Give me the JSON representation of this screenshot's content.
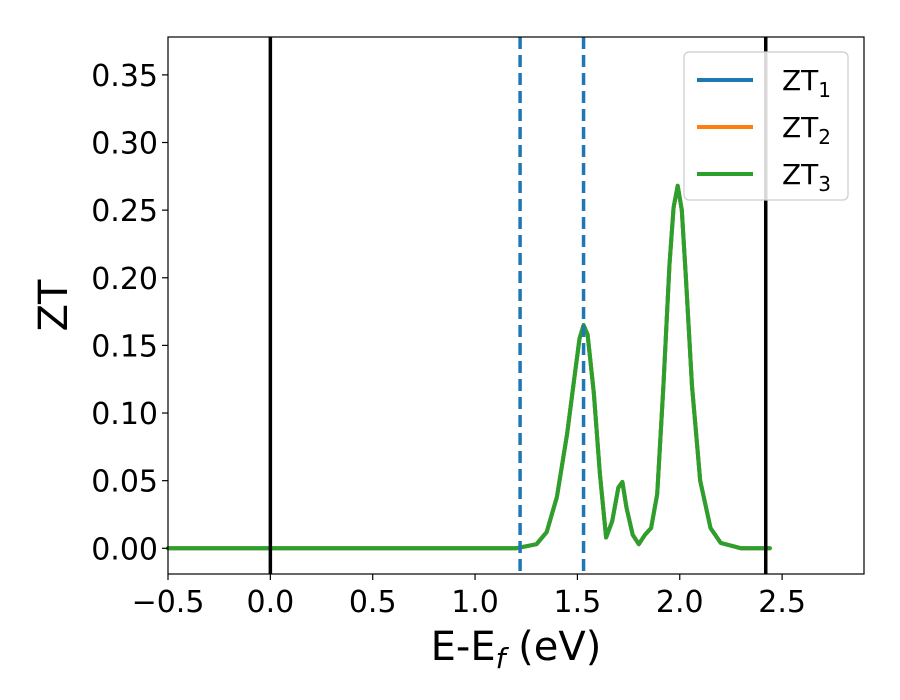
{
  "chart_data": {
    "type": "line",
    "xlabel": "E-E",
    "xlabel_sub": "f",
    "xlabel_unit": " (eV)",
    "ylabel": "ZT",
    "xlim": [
      -0.5,
      2.9
    ],
    "ylim": [
      -0.019,
      0.378
    ],
    "xticks": [
      -0.5,
      0.0,
      0.5,
      1.0,
      1.5,
      2.0,
      2.5
    ],
    "xtick_labels": [
      "−0.5",
      "0.0",
      "0.5",
      "1.0",
      "1.5",
      "2.0",
      "2.5"
    ],
    "yticks": [
      0.0,
      0.05,
      0.1,
      0.15,
      0.2,
      0.25,
      0.3,
      0.35
    ],
    "ytick_labels": [
      "0.00",
      "0.05",
      "0.10",
      "0.15",
      "0.20",
      "0.25",
      "0.30",
      "0.35"
    ],
    "grid": false,
    "legend_position": "top-right",
    "vertical_lines": [
      {
        "x": 0.0,
        "style": "solid",
        "color": "#000000"
      },
      {
        "x": 2.42,
        "style": "solid",
        "color": "#000000"
      },
      {
        "x": 1.22,
        "style": "dashed",
        "color": "#1f77b4"
      },
      {
        "x": 1.53,
        "style": "dashed",
        "color": "#1f77b4"
      }
    ],
    "x": [
      -0.5,
      1.2,
      1.3,
      1.35,
      1.4,
      1.45,
      1.48,
      1.51,
      1.53,
      1.55,
      1.58,
      1.61,
      1.64,
      1.67,
      1.7,
      1.72,
      1.74,
      1.77,
      1.8,
      1.83,
      1.86,
      1.89,
      1.92,
      1.95,
      1.97,
      1.99,
      2.01,
      2.03,
      2.06,
      2.1,
      2.15,
      2.2,
      2.3,
      2.44
    ],
    "series": [
      {
        "name": "ZT",
        "name_sub": "1",
        "color": "#1f77b4",
        "values": [
          0,
          0,
          0.003,
          0.012,
          0.038,
          0.085,
          0.12,
          0.155,
          0.165,
          0.158,
          0.115,
          0.055,
          0.008,
          0.02,
          0.045,
          0.049,
          0.03,
          0.01,
          0.003,
          0.01,
          0.015,
          0.04,
          0.12,
          0.21,
          0.252,
          0.268,
          0.25,
          0.2,
          0.12,
          0.05,
          0.015,
          0.004,
          0.0,
          0.0
        ]
      },
      {
        "name": "ZT",
        "name_sub": "2",
        "color": "#ff7f0e",
        "values": [
          0,
          0,
          0.003,
          0.012,
          0.038,
          0.085,
          0.12,
          0.155,
          0.165,
          0.158,
          0.115,
          0.055,
          0.008,
          0.02,
          0.045,
          0.049,
          0.03,
          0.01,
          0.003,
          0.01,
          0.015,
          0.04,
          0.12,
          0.21,
          0.252,
          0.268,
          0.25,
          0.2,
          0.12,
          0.05,
          0.015,
          0.004,
          0.0,
          0.0
        ]
      },
      {
        "name": "ZT",
        "name_sub": "3",
        "color": "#2ca02c",
        "values": [
          0,
          0,
          0.003,
          0.012,
          0.038,
          0.085,
          0.12,
          0.155,
          0.165,
          0.158,
          0.115,
          0.055,
          0.008,
          0.02,
          0.045,
          0.049,
          0.03,
          0.01,
          0.003,
          0.01,
          0.015,
          0.04,
          0.12,
          0.21,
          0.252,
          0.268,
          0.25,
          0.2,
          0.12,
          0.05,
          0.015,
          0.004,
          0.0,
          0.0
        ]
      }
    ]
  }
}
